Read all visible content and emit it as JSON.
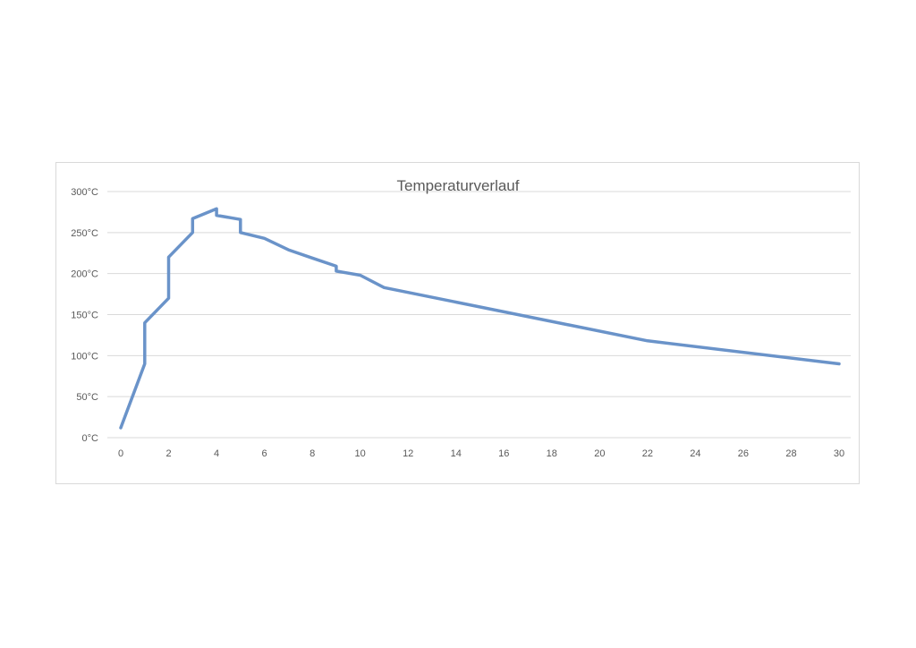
{
  "chart_data": {
    "type": "line",
    "title": "Temperaturverlauf",
    "xlabel": "",
    "ylabel": "",
    "xlim": [
      0,
      30
    ],
    "ylim": [
      0,
      300
    ],
    "x_ticks": [
      "0",
      "2",
      "4",
      "6",
      "8",
      "10",
      "12",
      "14",
      "16",
      "18",
      "20",
      "22",
      "24",
      "26",
      "28",
      "30"
    ],
    "y_ticks": [
      "0°C",
      "50°C",
      "100°C",
      "150°C",
      "200°C",
      "250°C",
      "300°C"
    ],
    "grid": true,
    "legend": "none",
    "series": [
      {
        "color": "#6a93c9",
        "x": [
          0,
          1,
          1,
          2,
          2,
          3,
          3,
          4,
          4,
          5,
          5,
          6,
          7,
          8,
          9,
          9,
          10,
          11,
          22,
          30
        ],
        "y": [
          12,
          90,
          140,
          170,
          220,
          250,
          267,
          279,
          271,
          266,
          250,
          243,
          229,
          219,
          209,
          203,
          198,
          183,
          118,
          90
        ]
      }
    ]
  }
}
